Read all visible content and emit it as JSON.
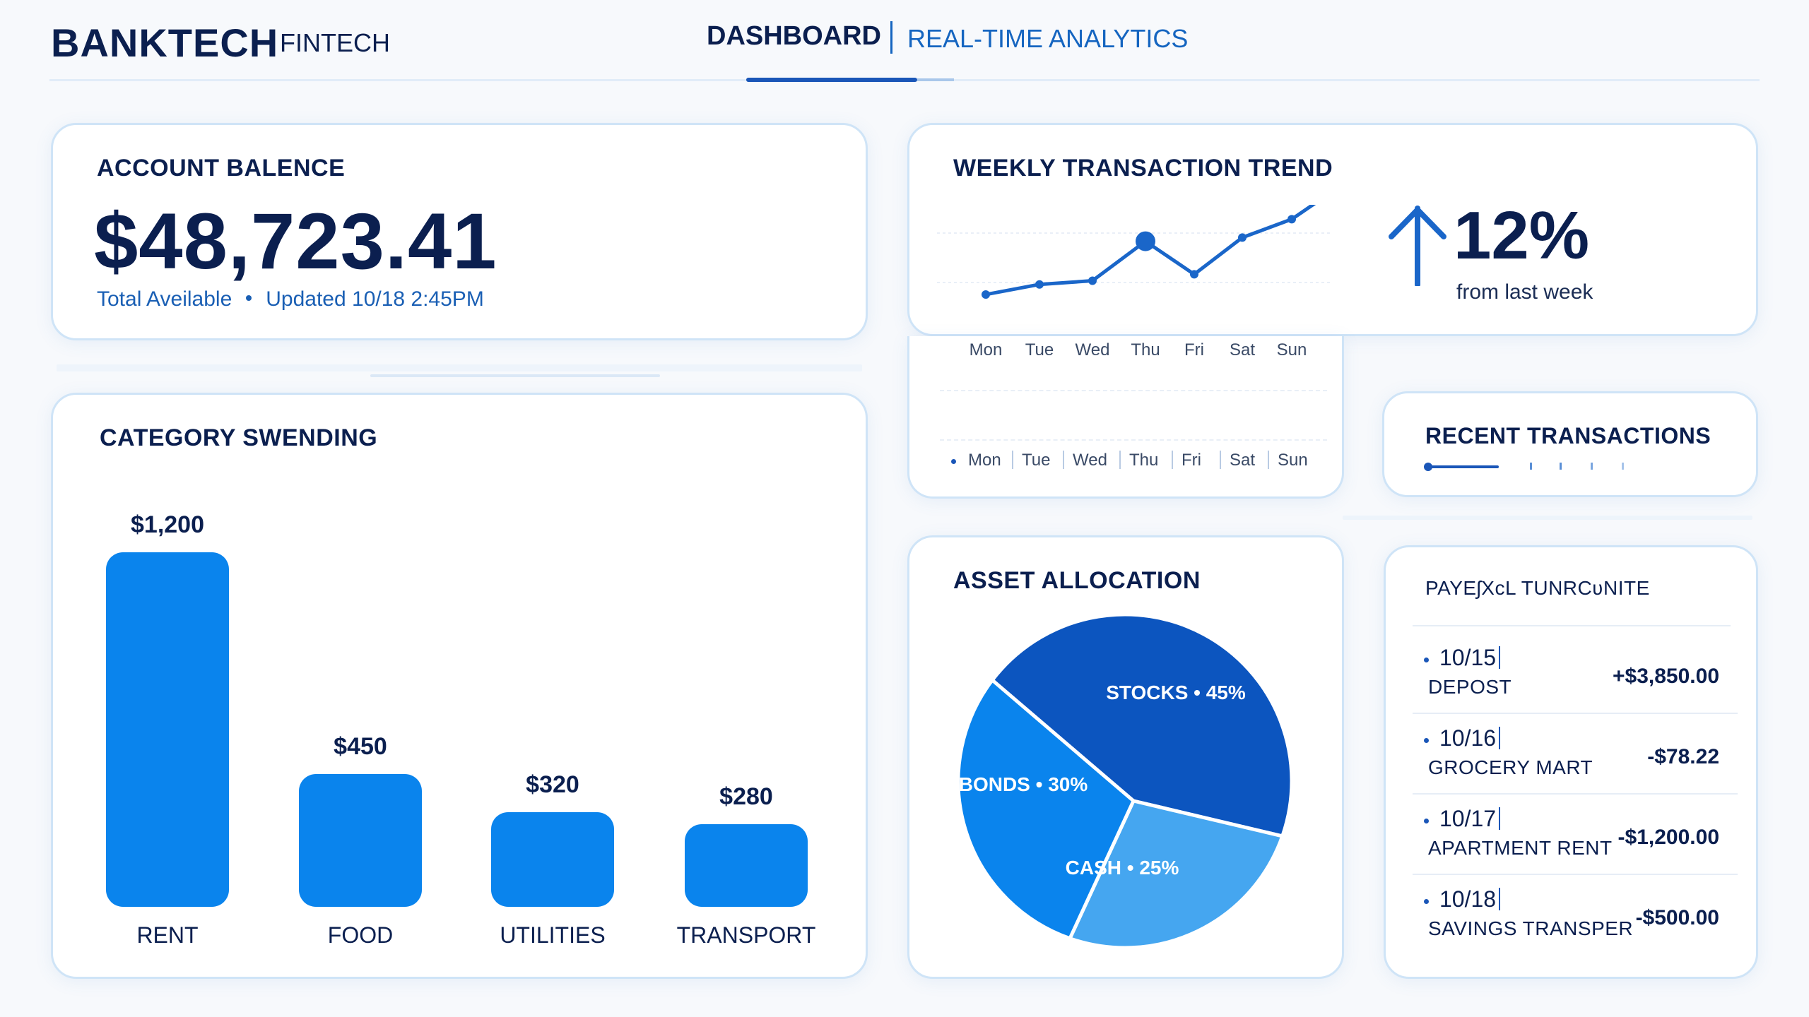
{
  "header": {
    "brand": "BANKTECH",
    "brand_sub": "FINTECH",
    "nav_active": "DASHBOARD",
    "nav_item": "REAL-TIME ANALYTICS"
  },
  "balance": {
    "title": "ACCOUNT BALENCE",
    "value": "$48,723.41",
    "label": "Total Aveilable",
    "updated": "Updated 10/18 2:45PM"
  },
  "trend": {
    "title": "WEEKLY TRANSACTION TREND",
    "days": [
      "Mon",
      "Tue",
      "Wed",
      "Thu",
      "Fri",
      "Sat",
      "Sun"
    ],
    "change": "12%",
    "change_label": "from last week",
    "change_direction": "up-arrow-icon"
  },
  "recent": {
    "title": "RECENT TRANSACTIONS"
  },
  "category": {
    "title": "CATEGORY SWENDING"
  },
  "asset": {
    "title": "ASSET ALLOCATION"
  },
  "payments": {
    "title": "PAYEʃХсL TUNRCʋNITE",
    "items": [
      {
        "date": "10/15",
        "name": "DEPOST",
        "amount": "+$3,850.00"
      },
      {
        "date": "10/16",
        "name": "GROCERY MART",
        "amount": "-$78.22"
      },
      {
        "date": "10/17",
        "name": "APARTMENT RENT",
        "amount": "-$1,200.00"
      },
      {
        "date": "10/18",
        "name": "SAVINGS TRANSPER",
        "amount": "-$500.00"
      }
    ]
  },
  "chart_data": [
    {
      "type": "line",
      "title": "WEEKLY TRANSACTION TREND",
      "x": [
        "Mon",
        "Tue",
        "Wed",
        "Thu",
        "Fri",
        "Sat",
        "Sun"
      ],
      "series": [
        {
          "values": [
            1.0,
            2.1,
            2.5,
            6.8,
            3.2,
            7.2,
            9.2
          ],
          "highlight_index": 3
        }
      ],
      "ylim": [
        0,
        10
      ],
      "grid": true,
      "color": "#1a66c9"
    },
    {
      "type": "bar",
      "title": "CATEGORY SWENDING",
      "categories": [
        "RENT",
        "FOOD",
        "UTILITIES",
        "TRANSPORT"
      ],
      "values": [
        1200,
        450,
        320,
        280
      ],
      "labels": [
        "$1,200",
        "$450",
        "$320",
        "$280"
      ],
      "ylim": [
        0,
        1200
      ],
      "color": "#0a84ed"
    },
    {
      "type": "pie",
      "title": "ASSET ALLOCATION",
      "slices": [
        {
          "label": "STOCKS • 45%",
          "value": 45,
          "color": "#0c55bf"
        },
        {
          "label": "CASH • 25%",
          "value": 25,
          "color": "#45a6f0"
        },
        {
          "label": "BONDS • 30%",
          "value": 30,
          "color": "#0a84ed"
        }
      ]
    }
  ]
}
